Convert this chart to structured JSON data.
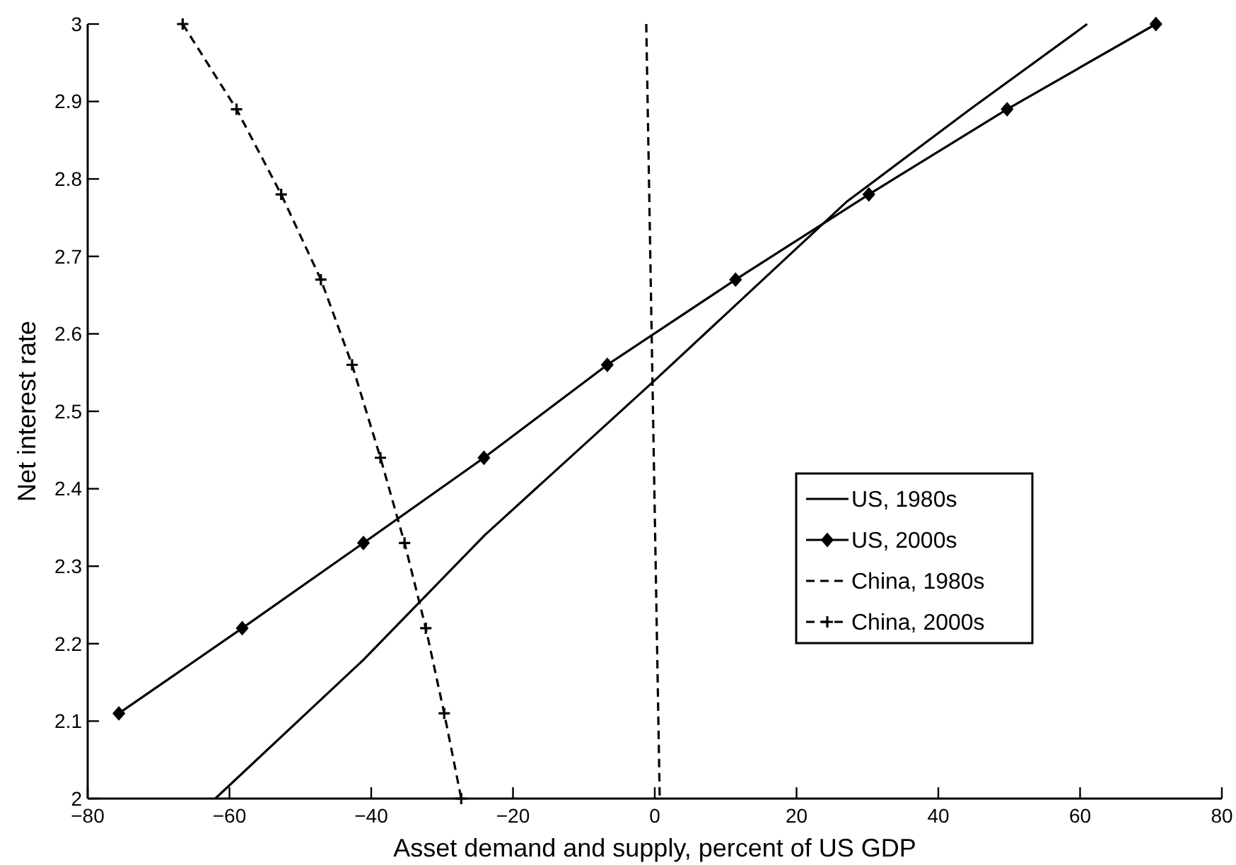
{
  "chart_data": {
    "type": "line",
    "xlabel": "Asset demand and supply, percent of US GDP",
    "ylabel": "Net interest rate",
    "xlim": [
      -80,
      80
    ],
    "xticks": [
      -80,
      -60,
      -40,
      -20,
      0,
      20,
      40,
      60,
      80
    ],
    "ylim": [
      2,
      3
    ],
    "yticks": [
      2,
      2.1,
      2.2,
      2.3,
      2.4,
      2.5,
      2.6,
      2.7,
      2.8,
      2.9,
      3
    ],
    "grid": false,
    "legend": "right",
    "series": [
      {
        "name": "US, 1980s",
        "color": "#000000",
        "marker": "none",
        "line_style": "solid",
        "x": [
          -62,
          -41,
          -24,
          0,
          27,
          44.5,
          61
        ],
        "values": [
          2,
          2.18,
          2.34,
          2.54,
          2.77,
          2.89,
          3
        ]
      },
      {
        "name": "US, 2000s",
        "color": "#000000",
        "marker": "diamond",
        "line_style": "solid",
        "x": [
          -75.6,
          -58.2,
          -41.1,
          -24.1,
          -6.7,
          11.4,
          30.2,
          49.7,
          70.7
        ],
        "values": [
          2.11,
          2.22,
          2.33,
          2.44,
          2.56,
          2.67,
          2.78,
          2.89,
          3
        ]
      },
      {
        "name": "China, 1980s",
        "color": "#000000",
        "marker": "none",
        "line_style": "dashed",
        "x": [
          -1.2,
          0.7
        ],
        "values": [
          3,
          2
        ]
      },
      {
        "name": "China, 2000s",
        "color": "#000000",
        "marker": "cross",
        "line_style": "dashed",
        "x": [
          -66.6,
          -59,
          -52.7,
          -47.1,
          -42.7,
          -38.7,
          -35.3,
          -32.3,
          -29.7,
          -27.3
        ],
        "values": [
          3,
          2.89,
          2.78,
          2.67,
          2.56,
          2.44,
          2.33,
          2.22,
          2.11,
          2
        ]
      }
    ]
  }
}
